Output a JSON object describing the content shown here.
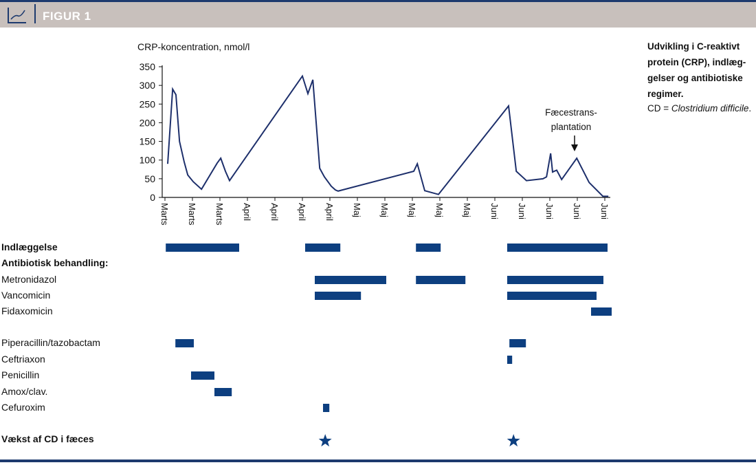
{
  "header": {
    "title": "FIGUR 1",
    "icon": "line-chart-icon"
  },
  "caption": {
    "text": "Udvikling i C-reaktivt protein (CRP), indlæg-gelser og antibiotiske regimer.",
    "line1": "Udvikling i C-reaktivt",
    "line2": "protein (CRP), indlæg-",
    "line3": "gelser og antibiotiske",
    "line4": "regimer.",
    "cd_prefix": "CD = ",
    "cd_name": "Clostridium difficile",
    "cd_suffix": "."
  },
  "colors": {
    "line": "#1d2f6b",
    "bar": "#0d3f80",
    "header": "#c8c0bc",
    "accent": "#1d3a6e"
  },
  "chart_data": {
    "type": "line",
    "ylabel": "CRP-koncentration, nmol/l",
    "ylim": [
      0,
      350
    ],
    "yticks": [
      0,
      50,
      100,
      150,
      200,
      250,
      300,
      350
    ],
    "xticks": [
      "Marts",
      "Marts",
      "Marts",
      "April",
      "April",
      "April",
      "April",
      "Maj",
      "Maj",
      "Maj",
      "Maj",
      "Maj",
      "Juni",
      "Juni",
      "Juni",
      "Juni",
      "Juni"
    ],
    "x_unit": "tick index",
    "series": [
      {
        "name": "CRP",
        "points": [
          [
            0.1,
            90
          ],
          [
            0.28,
            290
          ],
          [
            0.4,
            275
          ],
          [
            0.53,
            150
          ],
          [
            0.7,
            95
          ],
          [
            0.83,
            60
          ],
          [
            1.03,
            42
          ],
          [
            1.33,
            22
          ],
          [
            1.9,
            92
          ],
          [
            2.03,
            105
          ],
          [
            2.2,
            70
          ],
          [
            2.35,
            45
          ],
          [
            5.0,
            325
          ],
          [
            5.2,
            278
          ],
          [
            5.38,
            315
          ],
          [
            5.63,
            78
          ],
          [
            5.8,
            55
          ],
          [
            6.05,
            30
          ],
          [
            6.2,
            20
          ],
          [
            6.3,
            17
          ],
          [
            9.05,
            70
          ],
          [
            9.18,
            90
          ],
          [
            9.45,
            18
          ],
          [
            9.95,
            8
          ],
          [
            12.5,
            245
          ],
          [
            12.78,
            70
          ],
          [
            13.15,
            45
          ],
          [
            13.75,
            50
          ],
          [
            13.88,
            55
          ],
          [
            14.03,
            118
          ],
          [
            14.1,
            68
          ],
          [
            14.25,
            73
          ],
          [
            14.43,
            48
          ],
          [
            14.98,
            105
          ],
          [
            15.43,
            40
          ],
          [
            15.93,
            3
          ],
          [
            16.13,
            3
          ]
        ]
      }
    ],
    "annotation": {
      "text_line1": "Fæcestrans-",
      "text_line2": "plantation",
      "x": 14.9
    },
    "rows": [
      {
        "label": "Indlæggelse",
        "bold": true,
        "segments": [
          [
            0.03,
            2.7
          ],
          [
            5.1,
            6.38
          ],
          [
            9.13,
            10.03
          ],
          [
            12.45,
            16.1
          ]
        ]
      },
      {
        "label": "Antibiotisk behandling:",
        "bold": true,
        "segments": []
      },
      {
        "label": "Metronidazol",
        "bold": false,
        "segments": [
          [
            5.45,
            8.05
          ],
          [
            9.13,
            10.93
          ],
          [
            12.45,
            15.95
          ]
        ]
      },
      {
        "label": "Vancomicin",
        "bold": false,
        "segments": [
          [
            5.45,
            7.13
          ],
          [
            12.45,
            15.7
          ]
        ]
      },
      {
        "label": "Fidaxomicin",
        "bold": false,
        "segments": [
          [
            15.5,
            16.25
          ]
        ]
      },
      {
        "label": "Piperacillin/tazobactam",
        "bold": false,
        "segments": [
          [
            0.38,
            1.05
          ],
          [
            12.53,
            13.13
          ]
        ]
      },
      {
        "label": "Ceftriaxon",
        "bold": false,
        "segments": [
          [
            12.45,
            12.63
          ]
        ]
      },
      {
        "label": "Penicillin",
        "bold": false,
        "segments": [
          [
            0.95,
            1.8
          ]
        ]
      },
      {
        "label": "Amox/clav.",
        "bold": false,
        "segments": [
          [
            1.8,
            2.43
          ]
        ]
      },
      {
        "label": "Cefuroxim",
        "bold": false,
        "segments": [
          [
            5.75,
            5.98
          ]
        ]
      },
      {
        "label": "Vækst af CD i fæces",
        "bold": true,
        "segments": [],
        "stars": [
          5.83,
          12.68
        ]
      }
    ]
  }
}
